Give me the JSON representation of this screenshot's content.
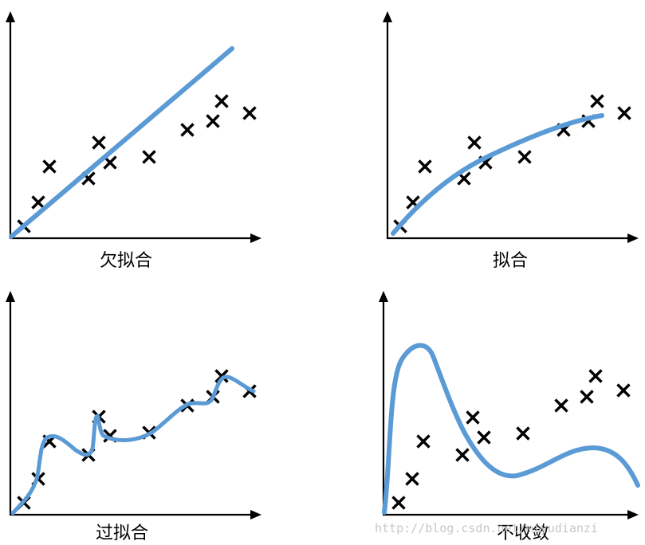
{
  "colors": {
    "fit": "#5b9bd5",
    "axis": "#000000",
    "points": "#000000",
    "watermark": "#c8c8c8"
  },
  "panels": [
    {
      "id": "underfit",
      "caption": "欠拟合",
      "fit_shape": "straight-line"
    },
    {
      "id": "goodfit",
      "caption": "拟合",
      "fit_shape": "smooth-curve"
    },
    {
      "id": "overfit",
      "caption": "过拟合",
      "fit_shape": "wiggly-curve-through-points"
    },
    {
      "id": "divergent",
      "caption": "不收敛",
      "fit_shape": "divergent-curve"
    }
  ],
  "watermark": "http://blog.csdn.net/miyudianzi"
}
